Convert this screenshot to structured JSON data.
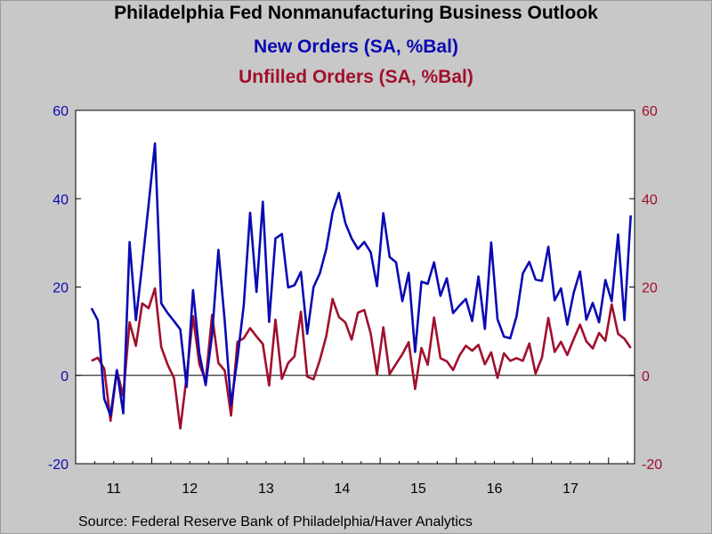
{
  "header": {
    "title": "Philadelphia Fed Nonmanufacturing Business Outlook",
    "subtitle_1": "New Orders (SA, %Bal)",
    "subtitle_2": "Unfilled Orders (SA, %Bal)"
  },
  "footer": {
    "source": "Source:  Federal Reserve Bank of Philadelphia/Haver Analytics"
  },
  "colors": {
    "new_orders": "#0a0ab4",
    "unfilled_orders": "#a0102c",
    "plot_background": "#ffffff",
    "page_background": "#c8c8c8"
  },
  "chart_data": {
    "type": "line",
    "title": "Philadelphia Fed Nonmanufacturing Business Outlook",
    "x_start": "2011-03",
    "x_frequency": "monthly",
    "x_tick_labels": [
      "11",
      "12",
      "13",
      "14",
      "15",
      "16",
      "17"
    ],
    "y_left": {
      "lim": [
        -20,
        60
      ],
      "ticks": [
        -20,
        0,
        20,
        40,
        60
      ]
    },
    "y_right": {
      "lim": [
        -20,
        60
      ],
      "ticks": [
        -20,
        0,
        20,
        40,
        60
      ]
    },
    "zero_line": true,
    "grid": false,
    "series": [
      {
        "name": "New Orders (SA, %Bal)",
        "axis": "left",
        "values": [
          15.2,
          12.5,
          -5.3,
          -9.1,
          1.2,
          -8.6,
          30.2,
          12.5,
          25.1,
          38.7,
          52.5,
          16.3,
          14.1,
          12.3,
          10.4,
          -2.6,
          19.3,
          5.0,
          -2.2,
          9.2,
          28.4,
          12.3,
          -6.7,
          3.8,
          15.9,
          36.8,
          18.9,
          39.3,
          12.1,
          31.0,
          32.0,
          19.9,
          20.4,
          23.4,
          9.4,
          20.0,
          23.1,
          28.6,
          36.9,
          41.3,
          34.5,
          31.0,
          28.6,
          30.2,
          27.9,
          20.2,
          36.7,
          26.8,
          25.6,
          16.8,
          23.2,
          5.3,
          21.2,
          20.7,
          25.6,
          18.0,
          22.0,
          14.1,
          15.8,
          17.3,
          12.3,
          22.4,
          10.5,
          30.1,
          12.7,
          8.8,
          8.4,
          13.4,
          23.1,
          25.7,
          21.7,
          21.4,
          29.1,
          17.0,
          19.7,
          11.5,
          18.7,
          23.5,
          12.6,
          16.4,
          12.0,
          21.6,
          16.8,
          31.9,
          12.5,
          36.2
        ]
      },
      {
        "name": "Unfilled Orders (SA, %Bal)",
        "axis": "right",
        "values": [
          3.3,
          4.0,
          1.5,
          -10.3,
          1.1,
          -4.7,
          12.0,
          6.7,
          16.3,
          15.2,
          19.7,
          6.4,
          2.4,
          -0.6,
          -12.0,
          -0.3,
          13.4,
          2.5,
          -1.2,
          13.7,
          2.8,
          1.1,
          -9.1,
          7.6,
          8.4,
          10.7,
          8.8,
          7.1,
          -2.3,
          12.6,
          -0.8,
          2.8,
          4.3,
          14.4,
          -0.3,
          -0.9,
          3.5,
          8.9,
          17.3,
          13.2,
          12.0,
          8.1,
          14.2,
          14.8,
          9.5,
          0.3,
          10.9,
          0.3,
          2.6,
          4.8,
          7.5,
          -3.1,
          6.2,
          2.4,
          13.1,
          3.9,
          3.2,
          1.2,
          4.5,
          6.7,
          5.6,
          6.9,
          2.5,
          5.2,
          -0.6,
          5.0,
          3.3,
          3.9,
          3.3,
          7.2,
          0.4,
          4.0,
          13.0,
          5.3,
          7.6,
          4.6,
          8.2,
          11.5,
          7.7,
          6.1,
          9.6,
          7.8,
          16.1,
          9.4,
          8.3,
          6.2
        ]
      }
    ]
  }
}
